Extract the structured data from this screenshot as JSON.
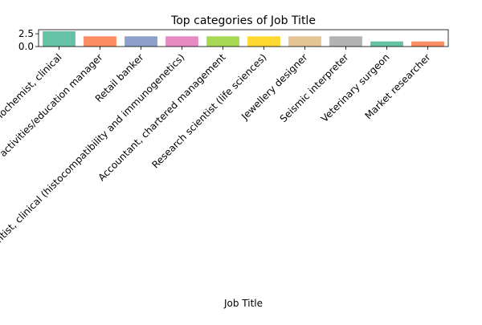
{
  "chart_data": {
    "type": "bar",
    "title": "Top categories of Job Title",
    "xlabel": "Job Title",
    "ylabel": "",
    "ylim": [
      0,
      3.3
    ],
    "yticks": [
      0.0,
      2.5
    ],
    "ytick_labels": [
      "0.0",
      "2.5"
    ],
    "grid": false,
    "legend": "none",
    "categories": [
      "Biochemist, clinical",
      "Outdoor activities/education manager",
      "Retail banker",
      "Scientist, clinical (histocompatibility and immunogenetics)",
      "Accountant, chartered management",
      "Research scientist (life sciences)",
      "Jewellery designer",
      "Seismic interpreter",
      "Veterinary surgeon",
      "Market researcher"
    ],
    "values": [
      3,
      2,
      2,
      2,
      2,
      2,
      2,
      2,
      1,
      1
    ],
    "colors": [
      "#66c2a5",
      "#fc8d62",
      "#8da0cb",
      "#e78ac3",
      "#a6d854",
      "#ffd92f",
      "#e5c494",
      "#b3b3b3",
      "#66c2a5",
      "#fc8d62"
    ]
  }
}
